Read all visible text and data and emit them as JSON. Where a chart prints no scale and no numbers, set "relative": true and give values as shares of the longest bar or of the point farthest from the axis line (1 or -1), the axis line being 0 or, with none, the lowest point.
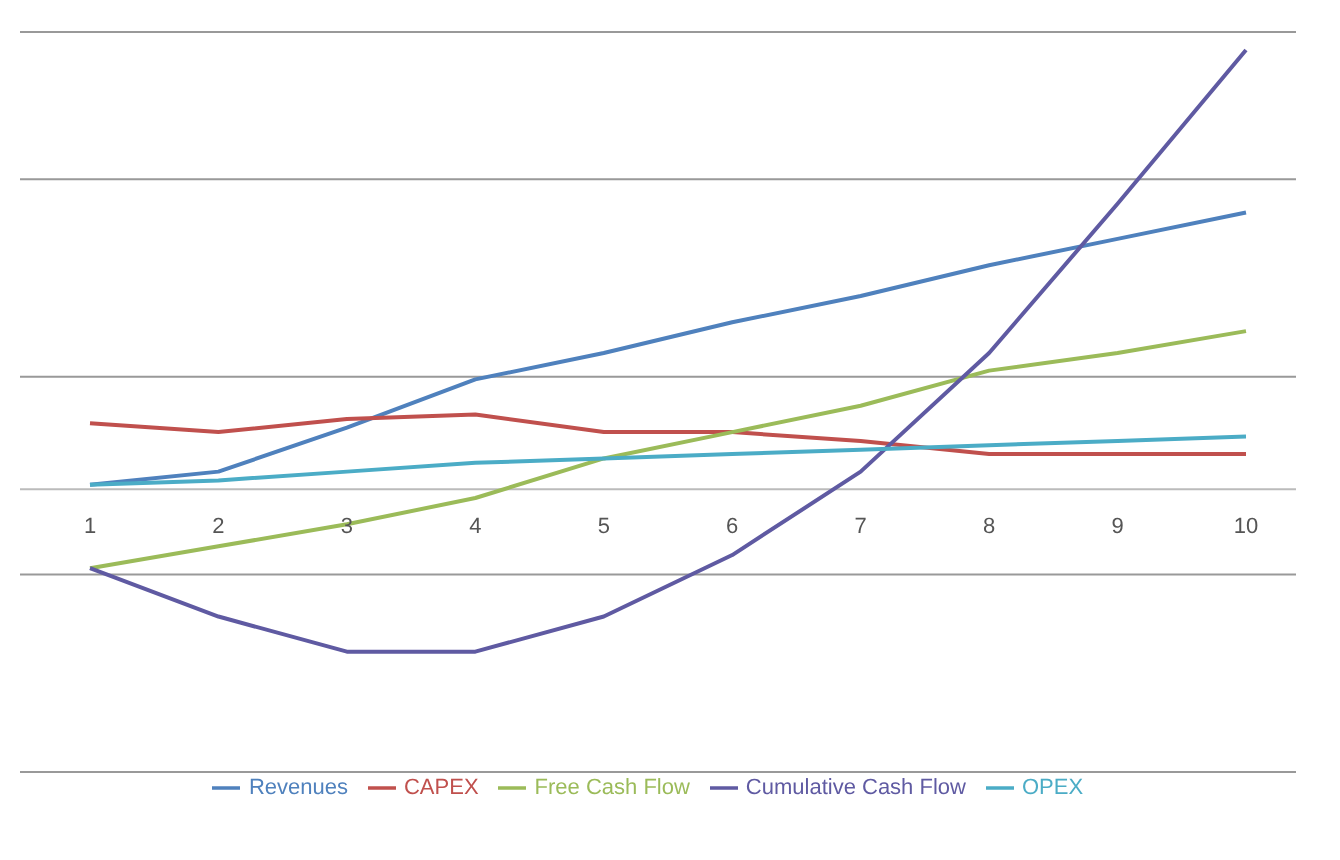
{
  "chart_data": {
    "type": "line",
    "relative": true,
    "categories": [
      "1",
      "2",
      "3",
      "4",
      "5",
      "6",
      "7",
      "8",
      "9",
      "10"
    ],
    "grid": "y",
    "legend": "bottom",
    "marker": "none",
    "line_style": "solid",
    "series": [
      {
        "name": "Revenues",
        "color": "#4f81bd",
        "values": [
          0.01,
          0.04,
          0.14,
          0.25,
          0.31,
          0.38,
          0.44,
          0.51,
          0.57,
          0.63
        ]
      },
      {
        "name": "CAPEX",
        "color": "#c0504d",
        "values": [
          0.15,
          0.13,
          0.16,
          0.17,
          0.13,
          0.13,
          0.11,
          0.08,
          0.08,
          0.08
        ]
      },
      {
        "name": "Free Cash Flow",
        "color": "#9bbb59",
        "values": [
          -0.18,
          -0.13,
          -0.08,
          -0.02,
          0.07,
          0.13,
          0.19,
          0.27,
          0.31,
          0.36
        ]
      },
      {
        "name": "Cumulative Cash Flow",
        "color": "#5f5aa2",
        "values": [
          -0.18,
          -0.29,
          -0.37,
          -0.37,
          -0.29,
          -0.15,
          0.04,
          0.31,
          0.65,
          1
        ]
      },
      {
        "name": "OPEX",
        "color": "#4bacc6",
        "values": [
          0.01,
          0.02,
          0.04,
          0.06,
          0.07,
          0.08,
          0.09,
          0.1,
          0.11,
          0.12
        ]
      }
    ]
  }
}
